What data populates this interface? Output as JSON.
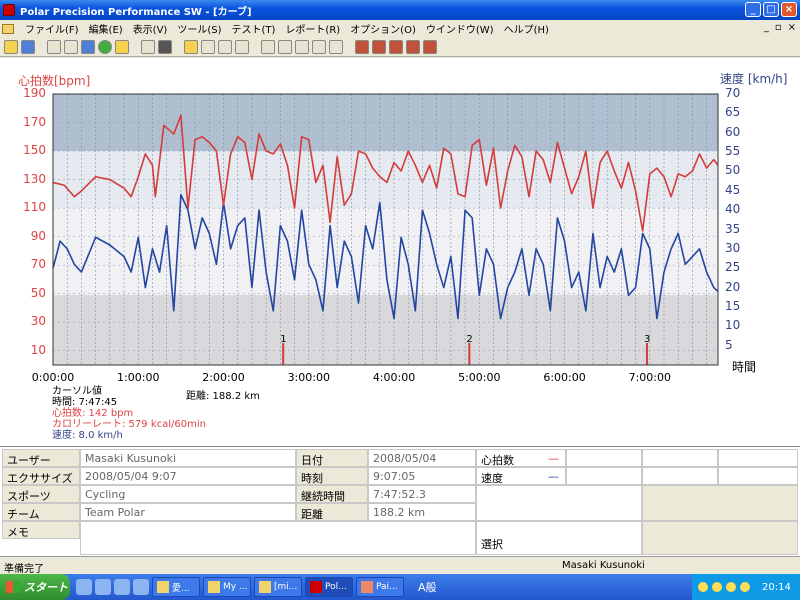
{
  "window": {
    "title": "Polar Precision Performance SW - [カーブ]"
  },
  "menu": {
    "items": [
      "ファイル(F)",
      "編集(E)",
      "表示(V)",
      "ツール(S)",
      "テスト(T)",
      "レポート(R)",
      "オプション(O)",
      "ウインドウ(W)",
      "ヘルプ(H)"
    ]
  },
  "chart": {
    "left_label": "心拍数[bpm]",
    "right_label": "速度 [km/h]",
    "time_label": "時間",
    "left_ticks": [
      "190",
      "170",
      "150",
      "130",
      "110",
      "90",
      "70",
      "50",
      "30",
      "10"
    ],
    "right_ticks": [
      "70",
      "65",
      "60",
      "55",
      "50",
      "45",
      "40",
      "35",
      "30",
      "25",
      "20",
      "15",
      "10",
      "5"
    ],
    "x_ticks": [
      "0:00:00",
      "1:00:00",
      "2:00:00",
      "3:00:00",
      "4:00:00",
      "5:00:00",
      "6:00:00",
      "7:00:00"
    ],
    "laps": [
      "1",
      "2",
      "3"
    ],
    "colors": {
      "hr": "#d33c3c",
      "speed": "#2346a0",
      "zone_dark": "#b0bfd0",
      "zone_mid": "#e6e9ef",
      "zone_light": "#f1f1f4",
      "zone_low": "#d9d9dc"
    }
  },
  "chart_data": {
    "type": "line",
    "xlabel": "時間",
    "ylabel": "心拍数[bpm]",
    "y2label": "速度 [km/h]",
    "xlim_minutes": [
      0,
      468
    ],
    "ylim": [
      0,
      190
    ],
    "y2lim": [
      0,
      70
    ],
    "series": [
      {
        "name": "心拍数",
        "axis": "left",
        "x": [
          0,
          8,
          15,
          20,
          30,
          40,
          50,
          55,
          60,
          65,
          70,
          72,
          78,
          85,
          90,
          95,
          100,
          105,
          110,
          115,
          120,
          125,
          130,
          135,
          140,
          145,
          150,
          155,
          160,
          165,
          170,
          175,
          180,
          185,
          190,
          195,
          200,
          205,
          210,
          215,
          220,
          225,
          230,
          235,
          240,
          245,
          250,
          255,
          260,
          265,
          270,
          275,
          280,
          285,
          290,
          295,
          300,
          305,
          310,
          315,
          320,
          325,
          330,
          335,
          340,
          345,
          350,
          355,
          360,
          365,
          370,
          375,
          380,
          385,
          390,
          395,
          400,
          405,
          410,
          415,
          420,
          425,
          430,
          435,
          440,
          445,
          450,
          455,
          460,
          465,
          468
        ],
        "values": [
          128,
          126,
          118,
          122,
          132,
          130,
          124,
          118,
          132,
          148,
          140,
          118,
          168,
          162,
          175,
          110,
          158,
          160,
          156,
          150,
          112,
          148,
          160,
          156,
          130,
          162,
          150,
          148,
          155,
          140,
          110,
          160,
          158,
          128,
          140,
          100,
          146,
          112,
          120,
          150,
          148,
          138,
          132,
          128,
          142,
          136,
          150,
          140,
          128,
          140,
          124,
          152,
          148,
          120,
          118,
          154,
          158,
          126,
          152,
          110,
          136,
          154,
          146,
          118,
          150,
          144,
          128,
          156,
          138,
          120,
          132,
          150,
          110,
          142,
          150,
          136,
          124,
          142,
          122,
          94,
          134,
          138,
          132,
          118,
          134,
          132,
          136,
          148,
          138,
          144,
          140
        ]
      },
      {
        "name": "速度",
        "axis": "right",
        "x": [
          0,
          5,
          10,
          15,
          20,
          30,
          40,
          50,
          55,
          60,
          65,
          70,
          75,
          80,
          85,
          90,
          95,
          100,
          105,
          110,
          115,
          120,
          125,
          130,
          135,
          140,
          145,
          150,
          155,
          160,
          165,
          170,
          175,
          180,
          185,
          190,
          195,
          200,
          205,
          210,
          215,
          220,
          225,
          230,
          235,
          240,
          245,
          250,
          255,
          260,
          265,
          270,
          275,
          280,
          285,
          290,
          295,
          300,
          305,
          310,
          315,
          320,
          325,
          330,
          335,
          340,
          345,
          350,
          355,
          360,
          365,
          370,
          375,
          380,
          385,
          390,
          395,
          400,
          405,
          410,
          415,
          420,
          425,
          430,
          435,
          440,
          445,
          450,
          455,
          460,
          465,
          468
        ],
        "values": [
          25,
          32,
          30,
          26,
          24,
          33,
          31,
          28,
          24,
          33,
          20,
          30,
          24,
          36,
          14,
          44,
          40,
          30,
          38,
          34,
          26,
          42,
          30,
          36,
          38,
          20,
          40,
          24,
          14,
          36,
          32,
          22,
          40,
          26,
          22,
          14,
          36,
          20,
          32,
          28,
          16,
          36,
          30,
          42,
          22,
          12,
          33,
          26,
          14,
          40,
          34,
          26,
          20,
          28,
          12,
          40,
          38,
          18,
          30,
          26,
          12,
          20,
          24,
          30,
          18,
          30,
          26,
          14,
          38,
          32,
          20,
          24,
          14,
          34,
          20,
          28,
          24,
          30,
          18,
          20,
          34,
          30,
          12,
          24,
          30,
          34,
          26,
          28,
          30,
          24,
          20,
          19
        ]
      }
    ]
  },
  "cursor": {
    "title": "カーソル値",
    "time": "時間: 7:47:45",
    "hr": "心拍数: 142 bpm",
    "calorie": "カロリーレート: 579 kcal/60min",
    "speed": "速度: 8.0 km/h",
    "distance": "距離: 188.2 km"
  },
  "info": {
    "user_label": "ユーザー",
    "user": "Masaki Kusunoki",
    "exercise_label": "エクササイズ",
    "exercise": "2008/05/04 9:07",
    "sport_label": "スポーツ",
    "sport": "Cycling",
    "team_label": "チーム",
    "team": "Team Polar",
    "memo_label": "メモ",
    "date_label": "日付",
    "date": "2008/05/04",
    "time_label": "時刻",
    "time": "9:07:05",
    "duration_label": "継続時間",
    "duration": "7:47:52.3",
    "distance_label": "距離",
    "distance": "188.2 km",
    "legend_hr": "心拍数",
    "legend_speed": "速度",
    "select_label": "選択"
  },
  "status": {
    "left": "準備完了",
    "user": "Masaki Kusunoki"
  },
  "taskbar": {
    "start": "スタート",
    "tasks": [
      "愛...",
      "My ...",
      "[mi...",
      "Pol...",
      "Pai..."
    ],
    "ime": "A般",
    "clock": "20:14"
  }
}
